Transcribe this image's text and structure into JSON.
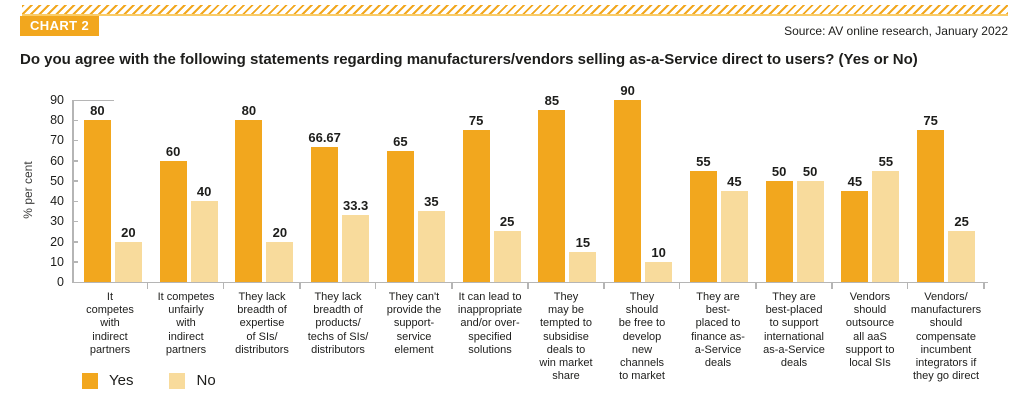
{
  "page": {
    "badge": "CHART 2",
    "source": "Source: AV online research, January 2022",
    "title": "Do you agree with the following statements regarding manufacturers/vendors selling as-a-Service direct to users? (Yes or No)"
  },
  "colors": {
    "accent_orange": "#F2A71E",
    "pale_orange": "#F8DB9C",
    "axis_gray": "#B5B5B5",
    "text_dark": "#1D1D1B"
  },
  "chart_data": {
    "type": "bar",
    "title": "Do you agree with the following statements regarding manufacturers/vendors selling as-a-Service direct to users? (Yes or No)",
    "xlabel": "",
    "ylabel": "% per cent",
    "ymax": 90,
    "ylim": [
      0,
      90
    ],
    "yticks": [
      90,
      80,
      70,
      60,
      50,
      40,
      30,
      20,
      10,
      0
    ],
    "grid": false,
    "legend_position": "bottom-left",
    "categories": [
      "It\ncompetes\nwith\nindirect\npartners",
      "It competes\nunfairly\nwith\nindirect\npartners",
      "They lack\nbreadth of\nexpertise\nof SIs/\ndistributors",
      "They lack\nbreadth of\nproducts/\ntechs of SIs/\ndistributors",
      "They can't\nprovide the\nsupport-\nservice\nelement",
      "It can lead to\ninappropriate\nand/or over-\nspecified\nsolutions",
      "They\nmay be\ntempted to\nsubsidise\ndeals to\nwin market\nshare",
      "They\nshould\nbe free to\ndevelop\nnew\nchannels\nto market",
      "They are\nbest-\nplaced to\nfinance as-\na-Service\ndeals",
      "They are\nbest-placed\nto support\ninternational\nas-a-Service\ndeals",
      "Vendors\nshould\noutsource\nall aaS\nsupport to\nlocal SIs",
      "Vendors/\nmanufacturers\nshould\ncompensate\nincumbent\nintegrators if\nthey go direct"
    ],
    "series": [
      {
        "name": "Yes",
        "color": "#F2A71E",
        "values": [
          80,
          60,
          80,
          66.67,
          65,
          75,
          85,
          90,
          55,
          50,
          45,
          75
        ]
      },
      {
        "name": "No",
        "color": "#F8DB9C",
        "values": [
          20,
          40,
          20,
          33.3,
          35,
          25,
          15,
          10,
          45,
          50,
          55,
          25
        ]
      }
    ]
  }
}
